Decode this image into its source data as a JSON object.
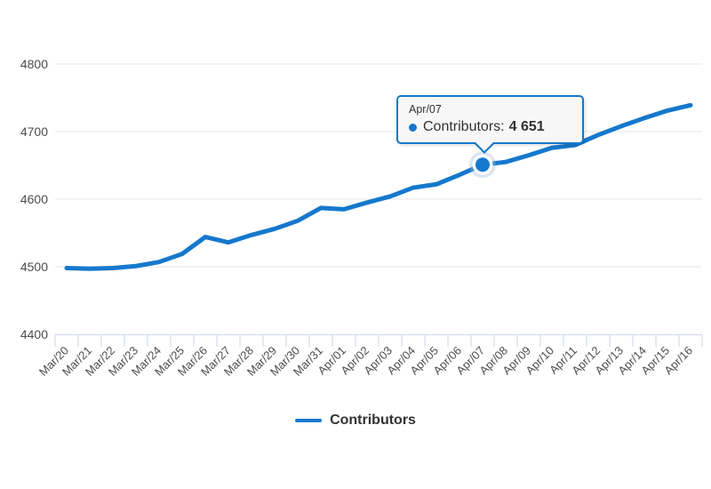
{
  "chart_data": {
    "type": "line",
    "title": "",
    "xlabel": "",
    "ylabel": "",
    "categories": [
      "Mar/20",
      "Mar/21",
      "Mar/22",
      "Mar/23",
      "Mar/24",
      "Mar/25",
      "Mar/26",
      "Mar/27",
      "Mar/28",
      "Mar/29",
      "Mar/30",
      "Mar/31",
      "Apr/01",
      "Apr/02",
      "Apr/03",
      "Apr/04",
      "Apr/05",
      "Apr/06",
      "Apr/07",
      "Apr/08",
      "Apr/09",
      "Apr/10",
      "Apr/11",
      "Apr/12",
      "Apr/13",
      "Apr/14",
      "Apr/15",
      "Apr/16"
    ],
    "series": [
      {
        "name": "Contributors",
        "values": [
          4498,
          4497,
          4498,
          4501,
          4507,
          4519,
          4544,
          4536,
          4547,
          4556,
          4568,
          4587,
          4585,
          4595,
          4604,
          4617,
          4622,
          4636,
          4651,
          4655,
          4665,
          4676,
          4680,
          4695,
          4708,
          4720,
          4731,
          4739
        ]
      }
    ],
    "ylim": [
      4400,
      4800
    ],
    "yticks": [
      4400,
      4500,
      4600,
      4700,
      4800
    ],
    "grid": true,
    "legend_position": "bottom-center",
    "selected_point": {
      "index": 18,
      "category": "Apr/07",
      "value": 4651
    }
  },
  "tooltip": {
    "date": "Apr/07",
    "label": "Contributors:",
    "value": "4 651"
  },
  "legend": {
    "label": "Contributors"
  },
  "colors": {
    "line": "#1578cd",
    "grid": "#e6e6e6",
    "axis": "#ccd6eb",
    "label": "#4d4d4d",
    "legend_text": "#333333",
    "tooltip_bg": "#f7f7f7",
    "halo": "#9bb7d4"
  }
}
